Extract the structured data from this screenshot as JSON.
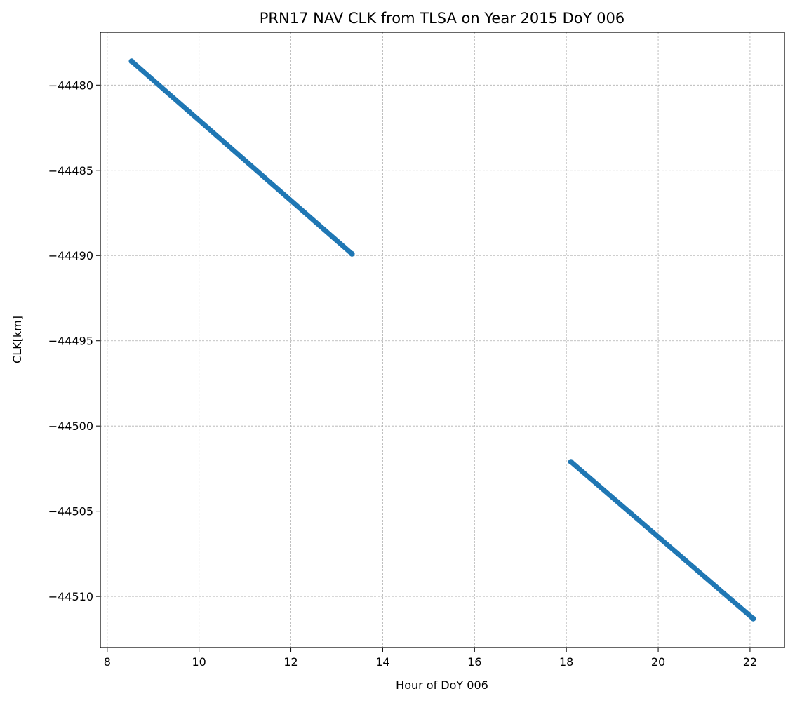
{
  "chart_data": {
    "type": "scatter",
    "title": "PRN17 NAV CLK from TLSA on Year 2015 DoY 006",
    "xlabel": "Hour of DoY 006",
    "ylabel": "CLK[km]",
    "xlim": [
      7.85,
      22.75
    ],
    "ylim": [
      -44513.0,
      -44476.9
    ],
    "xticks": [
      8,
      10,
      12,
      14,
      16,
      18,
      20,
      22
    ],
    "xtick_labels": [
      "8",
      "10",
      "12",
      "14",
      "16",
      "18",
      "20",
      "22"
    ],
    "yticks": [
      -44480,
      -44485,
      -44490,
      -44495,
      -44500,
      -44505,
      -44510
    ],
    "ytick_labels": [
      "−44480",
      "−44485",
      "−44490",
      "−44495",
      "−44500",
      "−44505",
      "−44510"
    ],
    "grid": true,
    "series": [
      {
        "color": "#1f77b4",
        "segments": [
          {
            "x": [
              8.53,
              13.33
            ],
            "y": [
              -44478.6,
              -44489.9
            ]
          },
          {
            "x": [
              18.1,
              22.07
            ],
            "y": [
              -44502.1,
              -44511.3
            ]
          }
        ]
      }
    ]
  }
}
